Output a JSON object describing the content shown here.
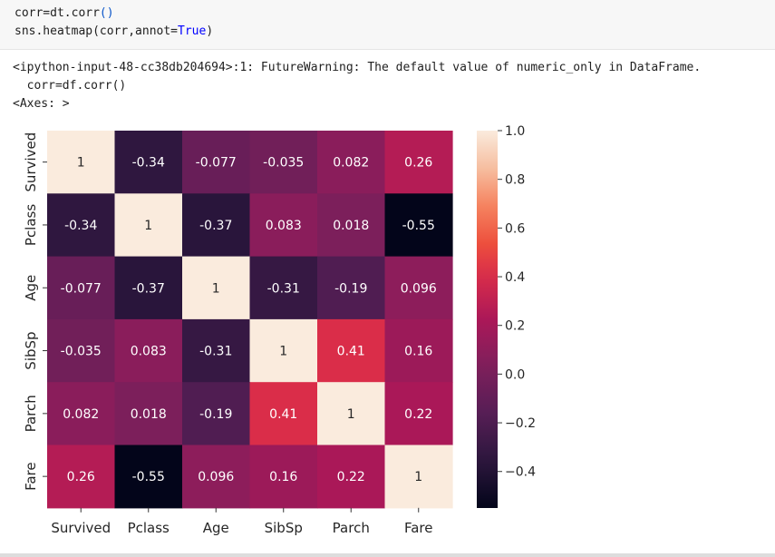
{
  "code": {
    "line1_a": "corr=dt.corr",
    "line1_b": "()",
    "line2_a": "sns.heatmap(corr,annot=",
    "line2_kw": "True",
    "line2_b": ")"
  },
  "output": {
    "warning_line1": "<ipython-input-48-cc38db204694>:1: FutureWarning: The default value of numeric_only in DataFrame.",
    "warning_line2": "  corr=df.corr()",
    "axes_repr": "<Axes: >"
  },
  "chart_data": {
    "type": "heatmap",
    "x_labels": [
      "Survived",
      "Pclass",
      "Age",
      "SibSp",
      "Parch",
      "Fare"
    ],
    "y_labels": [
      "Survived",
      "Pclass",
      "Age",
      "SibSp",
      "Parch",
      "Fare"
    ],
    "values": [
      [
        1,
        -0.34,
        -0.077,
        -0.035,
        0.082,
        0.26
      ],
      [
        -0.34,
        1,
        -0.37,
        0.083,
        0.018,
        -0.55
      ],
      [
        -0.077,
        -0.37,
        1,
        -0.31,
        -0.19,
        0.096
      ],
      [
        -0.035,
        0.083,
        -0.31,
        1,
        0.41,
        0.16
      ],
      [
        0.082,
        0.018,
        -0.19,
        0.41,
        1,
        0.22
      ],
      [
        0.26,
        -0.55,
        0.096,
        0.16,
        0.22,
        1
      ]
    ],
    "annotations": [
      [
        "1",
        "-0.34",
        "-0.077",
        "-0.035",
        "0.082",
        "0.26"
      ],
      [
        "-0.34",
        "1",
        "-0.37",
        "0.083",
        "0.018",
        "-0.55"
      ],
      [
        "-0.077",
        "-0.37",
        "1",
        "-0.31",
        "-0.19",
        "0.096"
      ],
      [
        "-0.035",
        "0.083",
        "-0.31",
        "1",
        "0.41",
        "0.16"
      ],
      [
        "0.082",
        "0.018",
        "-0.19",
        "0.41",
        "1",
        "0.22"
      ],
      [
        "0.26",
        "-0.55",
        "0.096",
        "0.16",
        "0.22",
        "1"
      ]
    ],
    "colormap": "rocket",
    "vmin": -0.55,
    "vmax": 1,
    "colorbar_ticks": [
      1.0,
      0.8,
      0.6,
      0.4,
      0.2,
      0.0,
      -0.2,
      -0.4
    ],
    "colorbar_tick_labels": [
      "1.0",
      "0.8",
      "0.6",
      "0.4",
      "0.2",
      "0.0",
      "−0.2",
      "−0.4"
    ],
    "grid": false
  }
}
